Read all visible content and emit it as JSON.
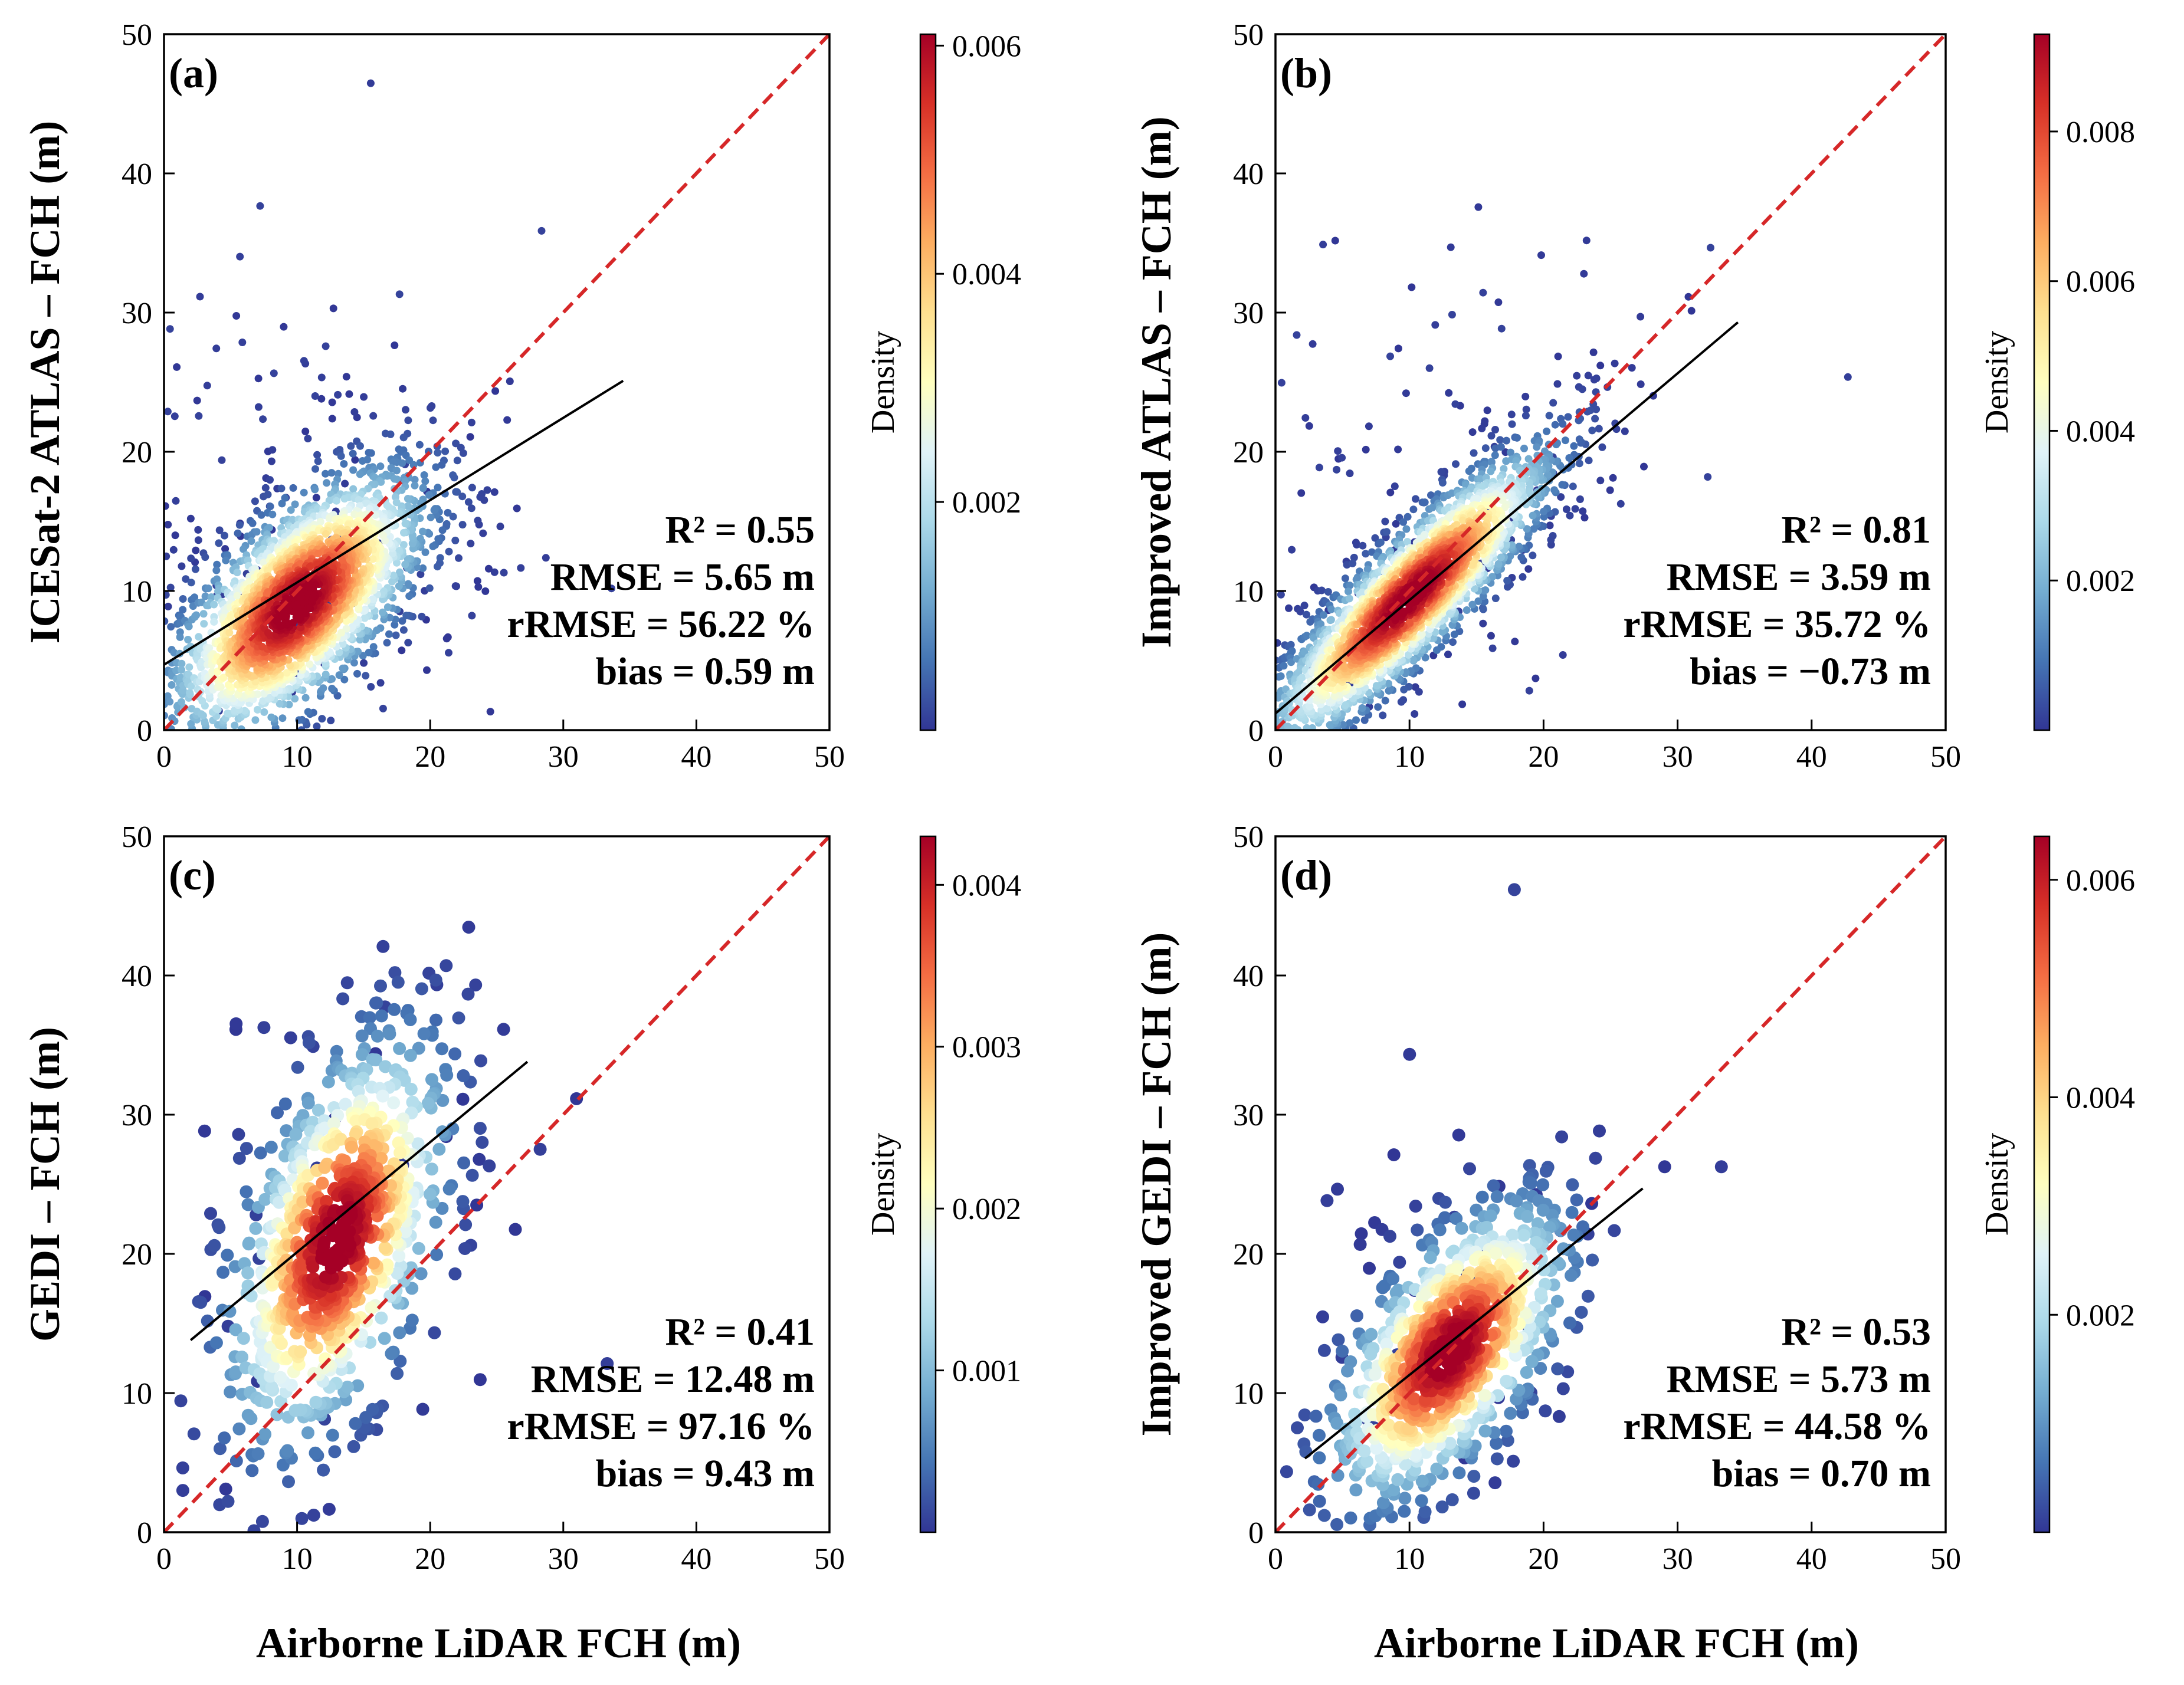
{
  "figure": {
    "shared_xlabel": "Airborne LiDAR FCH (m)"
  },
  "chart_data": [
    {
      "type": "scatter",
      "tag": "(a)",
      "ylabel": "ICESat-2 ATLAS – FCH (m)",
      "xlim": [
        0,
        50
      ],
      "ylim": [
        0,
        50
      ],
      "xticks": [
        0,
        10,
        20,
        30,
        40,
        50
      ],
      "yticks": [
        0,
        10,
        20,
        30,
        40,
        50
      ],
      "one_to_one_line": true,
      "fit": {
        "x0": 0,
        "y0": 4.7,
        "x1": 34.5,
        "y1": 25.1
      },
      "cloud": {
        "mx": 10,
        "my": 9,
        "sx": 5,
        "sy": 5,
        "rho": 0.65,
        "n": 2600,
        "outliers": 160
      },
      "stats": {
        "r2": "R² = 0.55",
        "rmse": "RMSE = 5.65 m",
        "rrmse": "rRMSE = 56.22 %",
        "bias": "bias = 0.59 m"
      },
      "colorbar": {
        "label": "Density",
        "max": 0.0061,
        "ticks": [
          "0.002",
          "0.004",
          "0.006"
        ],
        "tick_values": [
          0.002,
          0.004,
          0.006
        ]
      },
      "marker": "small"
    },
    {
      "type": "scatter",
      "tag": "(b)",
      "ylabel": "Improved ATLAS – FCH (m)",
      "xlim": [
        0,
        50
      ],
      "ylim": [
        0,
        50
      ],
      "xticks": [
        0,
        10,
        20,
        30,
        40,
        50
      ],
      "yticks": [
        0,
        10,
        20,
        30,
        40,
        50
      ],
      "one_to_one_line": true,
      "fit": {
        "x0": 0,
        "y0": 1.2,
        "x1": 34.5,
        "y1": 29.3
      },
      "cloud": {
        "mx": 10,
        "my": 9.5,
        "sx": 5.5,
        "sy": 5.5,
        "rho": 0.88,
        "n": 2600,
        "outliers": 120
      },
      "stats": {
        "r2": "R² = 0.81",
        "rmse": "RMSE = 3.59 m",
        "rrmse": "rRMSE = 35.72 %",
        "bias": "bias = −0.73 m"
      },
      "colorbar": {
        "label": "Density",
        "max": 0.0093,
        "ticks": [
          "0.002",
          "0.004",
          "0.006",
          "0.008"
        ],
        "tick_values": [
          0.002,
          0.004,
          0.006,
          0.008
        ]
      },
      "marker": "small"
    },
    {
      "type": "scatter",
      "tag": "(c)",
      "ylabel": "GEDI – FCH (m)",
      "xlim": [
        0,
        50
      ],
      "ylim": [
        0,
        50
      ],
      "xticks": [
        0,
        10,
        20,
        30,
        40,
        50
      ],
      "yticks": [
        0,
        10,
        20,
        30,
        40,
        50
      ],
      "one_to_one_line": true,
      "fit": {
        "x0": 2,
        "y0": 13.8,
        "x1": 27.3,
        "y1": 33.8
      },
      "cloud": {
        "mx": 13,
        "my": 21,
        "sx": 4.2,
        "sy": 7.5,
        "rho": 0.5,
        "n": 850,
        "outliers": 40
      },
      "stats": {
        "r2": "R² = 0.41",
        "rmse": "RMSE = 12.48 m",
        "rrmse": "rRMSE = 97.16 %",
        "bias": "bias = 9.43 m"
      },
      "colorbar": {
        "label": "Density",
        "max": 0.0043,
        "ticks": [
          "0.001",
          "0.002",
          "0.003",
          "0.004"
        ],
        "tick_values": [
          0.001,
          0.002,
          0.003,
          0.004
        ]
      },
      "marker": "large"
    },
    {
      "type": "scatter",
      "tag": "(d)",
      "ylabel": "Improved GEDI – FCH (m)",
      "xlim": [
        0,
        50
      ],
      "ylim": [
        0,
        50
      ],
      "xticks": [
        0,
        10,
        20,
        30,
        40,
        50
      ],
      "yticks": [
        0,
        10,
        20,
        30,
        40,
        50
      ],
      "one_to_one_line": true,
      "fit": {
        "x0": 2.2,
        "y0": 5.3,
        "x1": 27.4,
        "y1": 24.7
      },
      "cloud": {
        "mx": 13,
        "my": 13,
        "sx": 4.5,
        "sy": 5.5,
        "rho": 0.6,
        "n": 850,
        "outliers": 40
      },
      "stats": {
        "r2": "R² = 0.53",
        "rmse": "RMSE = 5.73 m",
        "rrmse": "rRMSE = 44.58 %",
        "bias": "bias = 0.70 m"
      },
      "colorbar": {
        "label": "Density",
        "max": 0.0064,
        "ticks": [
          "0.002",
          "0.004",
          "0.006"
        ],
        "tick_values": [
          0.002,
          0.004,
          0.006
        ]
      },
      "marker": "large"
    }
  ]
}
